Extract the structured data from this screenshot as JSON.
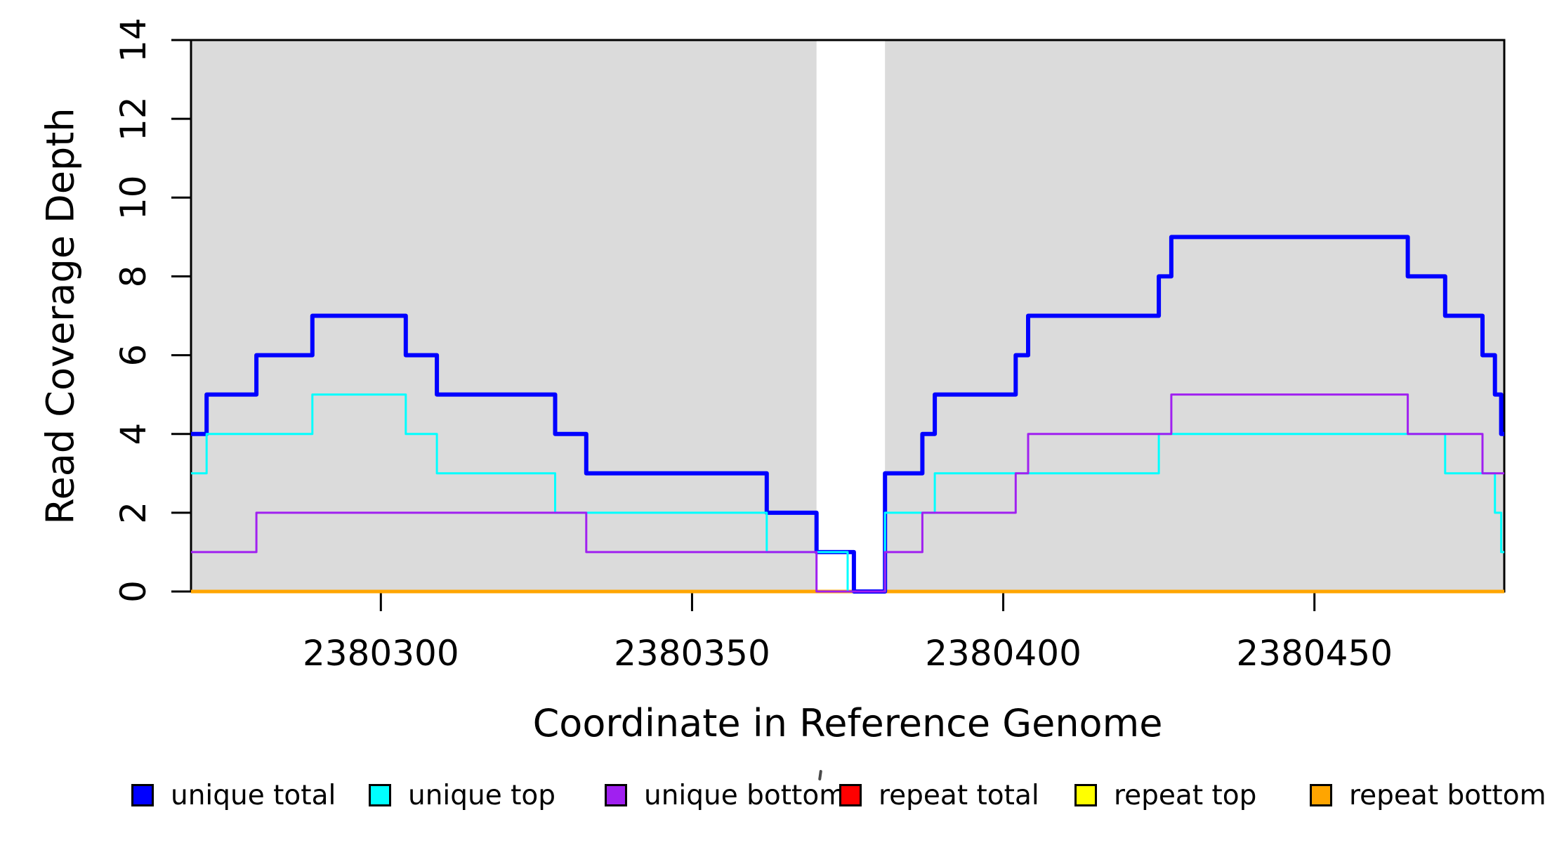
{
  "figure": {
    "x_axis_title": "Coordinate in Reference Genome",
    "y_axis_title": "Read Coverage Depth"
  },
  "chart_data": {
    "type": "line",
    "subtype": "step",
    "title": "",
    "xlabel": "Coordinate in Reference Genome",
    "ylabel": "Read Coverage Depth",
    "xlim": [
      2380269.5,
      2380480.5
    ],
    "ylim": [
      0,
      14
    ],
    "x_ticks": [
      2380300,
      2380350,
      2380400,
      2380450
    ],
    "y_ticks": [
      0,
      2,
      4,
      6,
      8,
      10,
      12,
      14
    ],
    "grid": false,
    "legend_position": "bottom",
    "plot_background": "#ffffff",
    "shaded_regions": [
      {
        "x0": 2380269.5,
        "x1": 2380370,
        "color": "#DBDBDB",
        "meaning": "shaded region left"
      },
      {
        "x0": 2380381,
        "x1": 2380480.5,
        "color": "#DBDBDB",
        "meaning": "shaded region right"
      }
    ],
    "series": [
      {
        "name": "repeat total",
        "color": "#FF0000",
        "width": 3,
        "steps": [
          [
            2380269,
            0
          ]
        ]
      },
      {
        "name": "repeat top",
        "color": "#FFFF00",
        "width": 3,
        "steps": [
          [
            2380269,
            0
          ]
        ]
      },
      {
        "name": "repeat bottom",
        "color": "#FFA500",
        "width": 5,
        "steps": [
          [
            2380269,
            0
          ]
        ]
      },
      {
        "name": "unique total",
        "color": "#0000FF",
        "width": 6,
        "steps": [
          [
            2380269,
            4
          ],
          [
            2380272,
            5
          ],
          [
            2380280,
            6
          ],
          [
            2380289,
            7
          ],
          [
            2380304,
            6
          ],
          [
            2380309,
            5
          ],
          [
            2380328,
            4
          ],
          [
            2380333,
            3
          ],
          [
            2380362,
            2
          ],
          [
            2380370,
            1
          ],
          [
            2380376,
            0
          ],
          [
            2380381,
            3
          ],
          [
            2380387,
            4
          ],
          [
            2380389,
            5
          ],
          [
            2380402,
            6
          ],
          [
            2380404,
            7
          ],
          [
            2380425,
            8
          ],
          [
            2380427,
            9
          ],
          [
            2380465,
            8
          ],
          [
            2380471,
            7
          ],
          [
            2380477,
            6
          ],
          [
            2380479,
            5
          ],
          [
            2380480,
            4
          ]
        ]
      },
      {
        "name": "unique top",
        "color": "#00FFFF",
        "width": 3,
        "steps": [
          [
            2380269,
            3
          ],
          [
            2380272,
            4
          ],
          [
            2380289,
            5
          ],
          [
            2380304,
            4
          ],
          [
            2380309,
            3
          ],
          [
            2380328,
            2
          ],
          [
            2380362,
            1
          ],
          [
            2380375,
            0
          ],
          [
            2380381,
            2
          ],
          [
            2380389,
            3
          ],
          [
            2380425,
            4
          ],
          [
            2380471,
            3
          ],
          [
            2380479,
            2
          ],
          [
            2380480,
            1
          ]
        ]
      },
      {
        "name": "unique bottom",
        "color": "#A020F0",
        "width": 3,
        "steps": [
          [
            2380269,
            1
          ],
          [
            2380280,
            2
          ],
          [
            2380333,
            1
          ],
          [
            2380370,
            0
          ],
          [
            2380381,
            1
          ],
          [
            2380387,
            2
          ],
          [
            2380402,
            3
          ],
          [
            2380404,
            4
          ],
          [
            2380427,
            5
          ],
          [
            2380465,
            4
          ],
          [
            2380477,
            3
          ]
        ]
      }
    ]
  },
  "legend": {
    "items": [
      {
        "label": "unique total",
        "color": "#0000FF"
      },
      {
        "label": "unique top",
        "color": "#00FFFF"
      },
      {
        "label": "unique bottom",
        "color": "#A020F0"
      },
      {
        "label": "repeat total",
        "color": "#FF0000"
      },
      {
        "label": "repeat top",
        "color": "#FFFF00"
      },
      {
        "label": "repeat bottom",
        "color": "#FFA500"
      }
    ]
  }
}
